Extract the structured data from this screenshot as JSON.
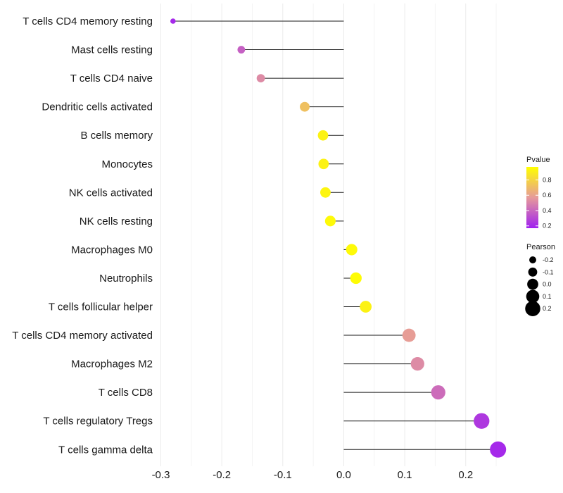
{
  "chart_data": {
    "type": "lollipop",
    "title": "",
    "xlabel": "",
    "ylabel": "",
    "xlim": [
      -0.3,
      0.27
    ],
    "x_ticks": [
      -0.3,
      -0.2,
      -0.1,
      0.0,
      0.1,
      0.2
    ],
    "x_tick_labels": [
      "-0.3",
      "-0.2",
      "-0.1",
      "0.0",
      "0.1",
      "0.2"
    ],
    "categories": [
      "T cells CD4 memory resting",
      "Mast cells resting",
      "T cells CD4 naive",
      "Dendritic cells activated",
      "B cells memory",
      "Monocytes",
      "NK cells activated",
      "NK cells resting",
      "Macrophages M0",
      "Neutrophils",
      "T cells follicular helper",
      "T cells CD4 memory activated",
      "Macrophages M2",
      "T cells CD8",
      "T cells regulatory  Tregs",
      "T cells gamma delta"
    ],
    "values": [
      -0.28,
      -0.168,
      -0.136,
      -0.064,
      -0.034,
      -0.033,
      -0.03,
      -0.022,
      0.013,
      0.02,
      0.036,
      0.107,
      0.121,
      0.155,
      0.226,
      0.253
    ],
    "pvalues": [
      0.2,
      0.38,
      0.52,
      0.72,
      0.92,
      0.92,
      0.93,
      0.95,
      0.95,
      0.96,
      0.92,
      0.58,
      0.52,
      0.42,
      0.25,
      0.2
    ],
    "color_legend": {
      "title": "Pvalue",
      "ticks": [
        0.2,
        0.4,
        0.6,
        0.8
      ],
      "tick_labels": [
        "0.2",
        "0.4",
        "0.6",
        "0.8"
      ],
      "range": [
        0.17,
        0.97
      ],
      "color_low": "#a020f0",
      "color_mid": "#e69a9a",
      "color_high": "#ffff00"
    },
    "size_legend": {
      "title": "Pearson",
      "values": [
        -0.2,
        -0.1,
        0.0,
        0.1,
        0.2
      ],
      "labels": [
        "-0.2",
        "-0.1",
        "0.0",
        "0.1",
        "0.2"
      ]
    }
  }
}
